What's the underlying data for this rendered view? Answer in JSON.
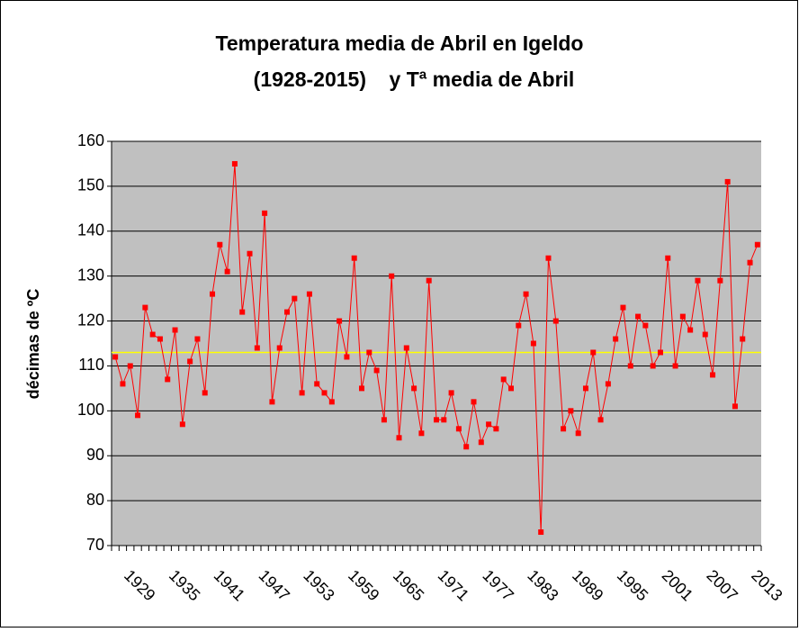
{
  "chart_data": {
    "type": "line",
    "title": [
      "Temperatura media de Abril en Igeldo",
      "(1928-2015)    y Tª media de Abril"
    ],
    "y_label": "décimas de ºC",
    "categories": [
      null,
      "1929",
      null,
      null,
      null,
      null,
      null,
      "1935",
      null,
      null,
      null,
      null,
      null,
      "1941",
      null,
      null,
      null,
      null,
      null,
      "1947",
      null,
      null,
      null,
      null,
      null,
      "1953",
      null,
      null,
      null,
      null,
      null,
      "1959",
      null,
      null,
      null,
      null,
      null,
      "1965",
      null,
      null,
      null,
      null,
      null,
      "1971",
      null,
      null,
      null,
      null,
      null,
      "1977",
      null,
      null,
      null,
      null,
      null,
      "1983",
      null,
      null,
      null,
      null,
      null,
      "1989",
      null,
      null,
      null,
      null,
      null,
      "1995",
      null,
      null,
      null,
      null,
      null,
      "2001",
      null,
      null,
      null,
      null,
      null,
      "2007",
      null,
      null,
      null,
      null,
      null,
      "2013",
      null
    ],
    "values": [
      112,
      106,
      110,
      99,
      123,
      117,
      116,
      107,
      118,
      97,
      111,
      116,
      104,
      126,
      137,
      131,
      155,
      122,
      135,
      114,
      144,
      102,
      114,
      122,
      125,
      104,
      126,
      106,
      104,
      102,
      120,
      112,
      134,
      105,
      113,
      109,
      98,
      130,
      94,
      114,
      105,
      95,
      129,
      98,
      98,
      104,
      96,
      92,
      102,
      93,
      97,
      96,
      107,
      105,
      119,
      126,
      115,
      73,
      134,
      120,
      96,
      100,
      95,
      105,
      113,
      98,
      106,
      116,
      123,
      110,
      121,
      119,
      110,
      113,
      134,
      110,
      121,
      118,
      129,
      117,
      108,
      129,
      151,
      101,
      116,
      133,
      137
    ],
    "color": "#ff0000",
    "mean_line": {
      "value": 113,
      "color": "#ffff00"
    },
    "ylim": [
      70,
      160
    ],
    "yticks": [
      70,
      80,
      90,
      100,
      110,
      120,
      130,
      140,
      150,
      160
    ],
    "grid": true
  }
}
